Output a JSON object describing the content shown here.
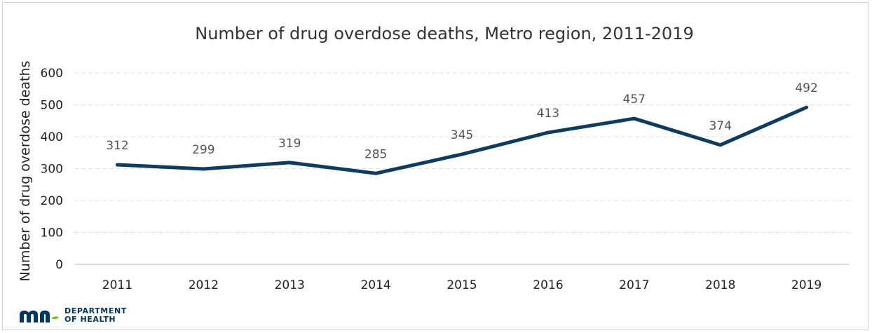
{
  "chart_data": {
    "type": "line",
    "title": "Number of drug overdose deaths, Metro region, 2011-2019",
    "xlabel": "",
    "ylabel": "Number of drug overdose deaths",
    "categories": [
      "2011",
      "2012",
      "2013",
      "2014",
      "2015",
      "2016",
      "2017",
      "2018",
      "2019"
    ],
    "series": [
      {
        "values": [
          312,
          299,
          319,
          285,
          345,
          413,
          457,
          374,
          492
        ],
        "color": "#0d3c63"
      }
    ],
    "ylim": [
      0,
      600
    ],
    "yticks": [
      0,
      100,
      200,
      300,
      400,
      500,
      600
    ],
    "grid": true,
    "legend": "none",
    "data_labels": true
  },
  "logo": {
    "icon": "mn-logo-icon",
    "line1": "DEPARTMENT",
    "line2": "OF HEALTH",
    "color": "#003865",
    "accent": "#78be21"
  }
}
